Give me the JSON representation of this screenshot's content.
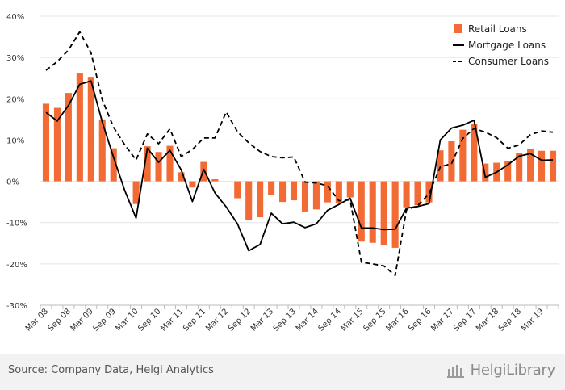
{
  "chart_data": {
    "type": "bar+line",
    "ylim": [
      -30,
      40
    ],
    "yticks": [
      -30,
      -20,
      -10,
      0,
      10,
      20,
      30,
      40
    ],
    "ytick_labels": [
      "-30%",
      "-20%",
      "-10%",
      "0%",
      "10%",
      "20%",
      "30%",
      "40%"
    ],
    "x": [
      "Mar 08",
      "Jun 08",
      "Sep 08",
      "Dec 08",
      "Mar 09",
      "Jun 09",
      "Sep 09",
      "Dec 09",
      "Mar 10",
      "Jun 10",
      "Sep 10",
      "Dec 10",
      "Mar 11",
      "Jun 11",
      "Sep 11",
      "Dec 11",
      "Mar 12",
      "Jun 12",
      "Sep 12",
      "Dec 12",
      "Mar 13",
      "Jun 13",
      "Sep 13",
      "Dec 13",
      "Mar 14",
      "Jun 14",
      "Sep 14",
      "Dec 14",
      "Mar 15",
      "Jun 15",
      "Sep 15",
      "Dec 15",
      "Mar 16",
      "Jun 16",
      "Sep 16",
      "Dec 16",
      "Mar 17",
      "Jun 17",
      "Sep 17",
      "Dec 17",
      "Mar 18",
      "Jun 18",
      "Sep 18",
      "Dec 18",
      "Mar 19",
      "Jun 19"
    ],
    "xtick_labels": [
      "Mar 08",
      "Sep 08",
      "Mar 09",
      "Sep 09",
      "Mar 10",
      "Sep 10",
      "Mar 11",
      "Sep 11",
      "Mar 12",
      "Sep 12",
      "Mar 13",
      "Sep 13",
      "Mar 14",
      "Sep 14",
      "Mar 15",
      "Sep 15",
      "Mar 16",
      "Sep 16",
      "Mar 17",
      "Sep 17",
      "Mar 18",
      "Sep 18",
      "Mar 19"
    ],
    "series": [
      {
        "name": "Retail Loans",
        "kind": "bar",
        "color": "#f26b35",
        "values": [
          18.8,
          17.8,
          21.4,
          26.1,
          25.3,
          15.0,
          8.0,
          0.0,
          -5.5,
          8.5,
          7.1,
          8.6,
          2.2,
          -1.5,
          4.7,
          0.5,
          0.0,
          -4.1,
          -9.4,
          -8.7,
          -3.3,
          -5.0,
          -4.6,
          -7.3,
          -6.8,
          -5.1,
          -5.3,
          -3.9,
          -14.6,
          -14.9,
          -15.4,
          -16.1,
          -6.3,
          -5.8,
          -5.1,
          7.5,
          9.7,
          12.5,
          14.0,
          4.3,
          4.5,
          5.0,
          6.8,
          7.9,
          7.4,
          7.4
        ]
      },
      {
        "name": "Mortgage Loans",
        "kind": "line",
        "dash": "solid",
        "color": "#000000",
        "values": [
          16.7,
          14.6,
          18.4,
          23.5,
          24.3,
          14.3,
          5.8,
          -2.3,
          -8.9,
          8.0,
          4.6,
          7.5,
          2.8,
          -4.9,
          2.9,
          -2.8,
          -6.2,
          -10.3,
          -16.8,
          -15.3,
          -7.7,
          -10.3,
          -9.9,
          -11.2,
          -10.3,
          -7.0,
          -5.6,
          -4.1,
          -11.3,
          -11.3,
          -11.7,
          -11.6,
          -6.5,
          -6.1,
          -5.4,
          10.0,
          12.9,
          13.6,
          14.8,
          1.0,
          2.2,
          4.0,
          6.1,
          6.7,
          5.1,
          5.2
        ]
      },
      {
        "name": "Consumer Loans",
        "kind": "line",
        "dash": "dashed",
        "color": "#000000",
        "values": [
          26.9,
          29.0,
          31.8,
          36.2,
          31.1,
          19.7,
          13.1,
          8.8,
          5.2,
          11.5,
          9.1,
          12.7,
          6.0,
          7.7,
          10.5,
          10.5,
          16.8,
          12.0,
          9.3,
          7.2,
          6.0,
          5.7,
          5.9,
          -0.2,
          -0.4,
          -1.1,
          -4.7,
          -4.5,
          -19.6,
          -20.0,
          -20.5,
          -22.8,
          -6.9,
          -5.9,
          -3.0,
          3.5,
          4.3,
          10.4,
          12.8,
          11.9,
          10.6,
          8.0,
          8.8,
          11.3,
          12.2,
          11.9
        ]
      }
    ],
    "legend_position": "top-right"
  },
  "footer": {
    "source": "Source: Company Data, Helgi Analytics",
    "brand": "HelgiLibrary"
  }
}
